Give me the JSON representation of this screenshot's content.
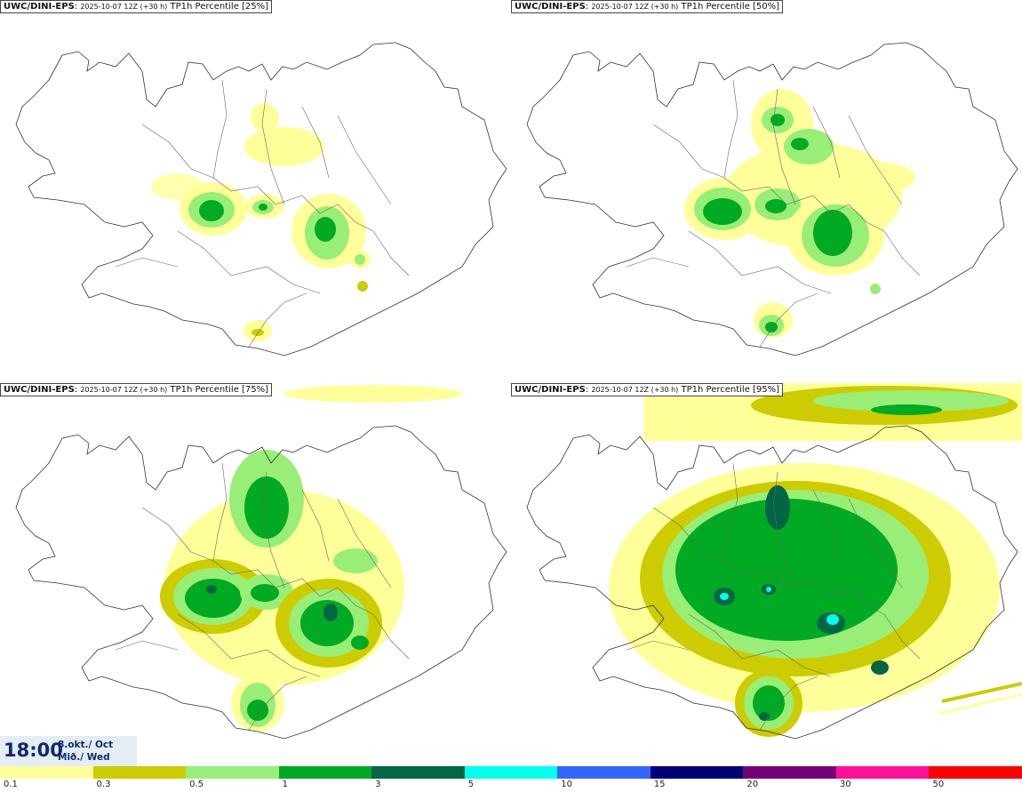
{
  "panels": [
    {
      "model": "UWC/DINI-EPS",
      "run": "2025-10-07 12Z (+30 h)",
      "field": "TP1h Percentile [25%]"
    },
    {
      "model": "UWC/DINI-EPS",
      "run": "2025-10-07 12Z (+30 h)",
      "field": "TP1h Percentile [50%]"
    },
    {
      "model": "UWC/DINI-EPS",
      "run": "2025-10-07 12Z (+30 h)",
      "field": "TP1h Percentile [75%]"
    },
    {
      "model": "UWC/DINI-EPS",
      "run": "2025-10-07 12Z (+30 h)",
      "field": "TP1h Percentile [95%]"
    }
  ],
  "time": {
    "clock": "18:00",
    "date_line1": "8.okt./ Oct",
    "date_line2": "Mið./ Wed"
  },
  "legend": {
    "colors": [
      "#ffff9a",
      "#cccc00",
      "#99ee77",
      "#00aa22",
      "#006644",
      "#00ffee",
      "#3366ff",
      "#000077",
      "#770077",
      "#ff1199",
      "#ff0000"
    ],
    "ticks": [
      "0.1",
      "0.3",
      "0.5",
      "1",
      "3",
      "5",
      "10",
      "15",
      "20",
      "30",
      "50"
    ]
  }
}
